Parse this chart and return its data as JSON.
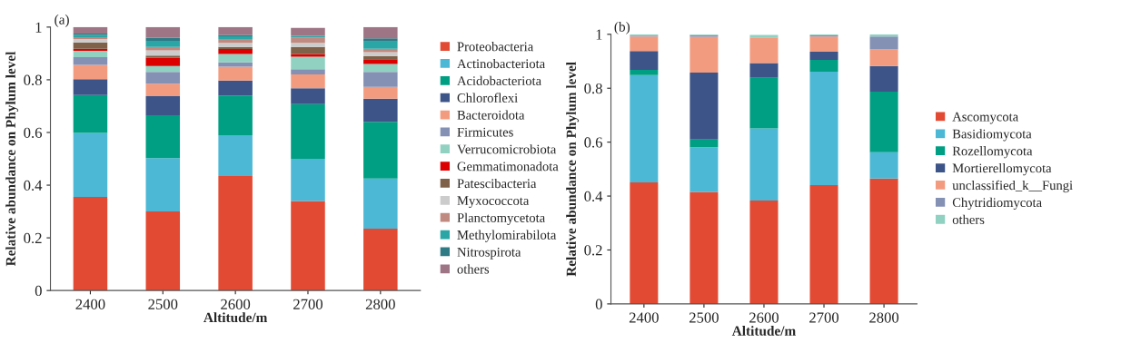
{
  "chart_data": [
    {
      "type": "bar",
      "stacked": true,
      "xlabel": "Altitude/m",
      "ylabel": "Relative abundance on Phylum level",
      "annotations": [
        "(a)"
      ],
      "legend": "right",
      "categories": [
        "2400",
        "2500",
        "2600",
        "2700",
        "2800"
      ],
      "ylim": [
        0,
        1
      ],
      "yticks": [
        0,
        0.2,
        0.4,
        0.6,
        0.8,
        1
      ],
      "series": [
        {
          "name": "Proteobacteria",
          "color": "#e34a33",
          "values": [
            0.355,
            0.3,
            0.435,
            0.34,
            0.235
          ]
        },
        {
          "name": "Actinobacteriota",
          "color": "#4cb8d5",
          "values": [
            0.243,
            0.203,
            0.155,
            0.16,
            0.19
          ]
        },
        {
          "name": "Acidobacteriota",
          "color": "#009f83",
          "values": [
            0.144,
            0.162,
            0.15,
            0.208,
            0.215
          ]
        },
        {
          "name": "Chloroflexi",
          "color": "#3c5488",
          "values": [
            0.06,
            0.073,
            0.057,
            0.06,
            0.088
          ]
        },
        {
          "name": "Bacteroidota",
          "color": "#f39b7f",
          "values": [
            0.055,
            0.047,
            0.053,
            0.052,
            0.045
          ]
        },
        {
          "name": "Firmicutes",
          "color": "#8491b4",
          "values": [
            0.029,
            0.045,
            0.016,
            0.02,
            0.057
          ]
        },
        {
          "name": "Verrucomicrobiota",
          "color": "#91d1c2",
          "values": [
            0.024,
            0.022,
            0.032,
            0.048,
            0.03
          ]
        },
        {
          "name": "Gemmatimonadota",
          "color": "#dc0000",
          "values": [
            0.008,
            0.031,
            0.019,
            0.01,
            0.018
          ]
        },
        {
          "name": "Patescibacteria",
          "color": "#7e6148",
          "values": [
            0.024,
            0.009,
            0.008,
            0.027,
            0.012
          ]
        },
        {
          "name": "Myxococcota",
          "color": "#cccccc",
          "values": [
            0.013,
            0.02,
            0.015,
            0.015,
            0.015
          ]
        },
        {
          "name": "Planctomycetota",
          "color": "#c08a80",
          "values": [
            0.007,
            0.013,
            0.015,
            0.02,
            0.013
          ]
        },
        {
          "name": "Methylomirabilota",
          "color": "#2aa6a6",
          "values": [
            0.008,
            0.023,
            0.01,
            0.007,
            0.027
          ]
        },
        {
          "name": "Nitrospirota",
          "color": "#2e7a85",
          "values": [
            0.005,
            0.012,
            0.005,
            null,
            0.012
          ]
        },
        {
          "name": "others",
          "color": "#9e7585",
          "values": [
            0.025,
            0.04,
            0.03,
            0.03,
            0.043
          ]
        }
      ]
    },
    {
      "type": "bar",
      "stacked": true,
      "xlabel": "Altitude/m",
      "ylabel": "Relative abundance on Phylum level",
      "annotations": [
        "(b)"
      ],
      "legend": "right",
      "categories": [
        "2400",
        "2500",
        "2600",
        "2700",
        "2800"
      ],
      "ylim": [
        0,
        1
      ],
      "yticks": [
        0,
        0.2,
        0.4,
        0.6,
        0.8,
        1
      ],
      "series": [
        {
          "name": "Ascomycota",
          "color": "#e34a33",
          "values": [
            0.451,
            0.415,
            0.383,
            0.441,
            0.465
          ]
        },
        {
          "name": "Basidiomycota",
          "color": "#4cb8d5",
          "values": [
            0.398,
            0.166,
            0.268,
            0.42,
            0.098
          ]
        },
        {
          "name": "Rozellomycota",
          "color": "#009f83",
          "values": [
            0.019,
            0.029,
            0.188,
            0.044,
            0.224
          ]
        },
        {
          "name": "Mortierellomycota",
          "color": "#3c5488",
          "values": [
            0.07,
            0.248,
            0.054,
            0.03,
            0.095
          ]
        },
        {
          "name": "unclassified_k__Fungi",
          "color": "#f39b7f",
          "values": [
            0.054,
            0.133,
            0.095,
            0.057,
            0.062
          ]
        },
        {
          "name": "Chytridiomycota",
          "color": "#8491b4",
          "values": [
            0.003,
            0.006,
            null,
            0.004,
            0.048
          ]
        },
        {
          "name": "others",
          "color": "#91d1c2",
          "values": [
            0.005,
            0.003,
            0.01,
            0.004,
            0.008
          ]
        }
      ]
    }
  ]
}
